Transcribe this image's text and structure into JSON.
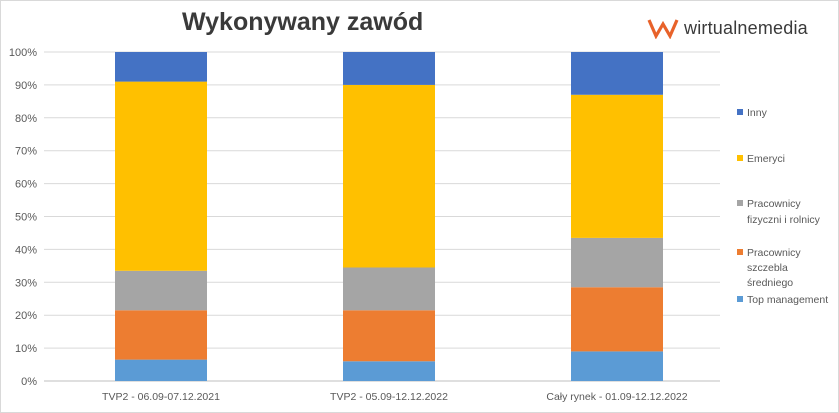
{
  "header": {
    "title": "Wykonywany zawód",
    "brand": "wirtualnemedia"
  },
  "chart_data": {
    "type": "bar",
    "stacked": true,
    "percent": true,
    "title": "Wykonywany zawód",
    "categories": [
      "TVP2 - 06.09-07.12.2021",
      "TVP2 - 05.09-12.12.2022",
      "Cały rynek - 01.09-12.12.2022"
    ],
    "ylim": [
      0,
      100
    ],
    "yticks": [
      "0%",
      "10%",
      "20%",
      "30%",
      "40%",
      "50%",
      "60%",
      "70%",
      "80%",
      "90%",
      "100%"
    ],
    "grid": true,
    "legend_position": "right",
    "series": [
      {
        "name": "Top management",
        "color": "#5b9bd5",
        "values": [
          6.5,
          6,
          9
        ]
      },
      {
        "name": "Pracownicy szczebla średniego",
        "color": "#ed7d31",
        "values": [
          15,
          15.5,
          19.5
        ]
      },
      {
        "name": "Pracownicy fizyczni i rolnicy",
        "color": "#a5a5a5",
        "values": [
          12,
          13,
          15
        ]
      },
      {
        "name": "Emeryci",
        "color": "#ffc000",
        "values": [
          57.5,
          55.5,
          43.5
        ]
      },
      {
        "name": "Inny",
        "color": "#4472c4",
        "values": [
          9,
          10,
          13
        ]
      }
    ]
  }
}
